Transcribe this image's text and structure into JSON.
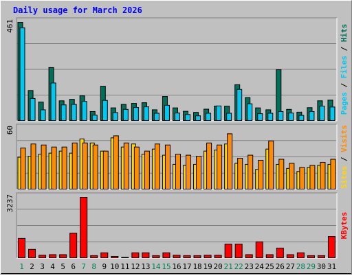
{
  "chart_data": {
    "type": "bar",
    "title": "Daily usage for March 2026",
    "categories": [
      "1",
      "2",
      "3",
      "4",
      "5",
      "6",
      "7",
      "8",
      "9",
      "10",
      "11",
      "12",
      "13",
      "14",
      "15",
      "16",
      "17",
      "18",
      "19",
      "20",
      "21",
      "22",
      "23",
      "24",
      "25",
      "26",
      "27",
      "28",
      "29",
      "30",
      "31"
    ],
    "weekend_days": [
      "1",
      "7",
      "8",
      "14",
      "15",
      "21",
      "22",
      "28",
      "29"
    ],
    "panels": [
      {
        "id": "hits-files",
        "max_label": "461",
        "ylim": [
          0,
          461
        ],
        "legend": [
          "Pages",
          "Files",
          "Hits"
        ],
        "series": [
          {
            "name": "Hits",
            "color": "#006f5a",
            "values": [
              461,
              143,
              89,
              250,
              95,
              102,
              118,
              45,
              163,
              62,
              78,
              83,
              86,
              53,
              115,
              62,
              46,
              41,
              56,
              70,
              70,
              170,
              110,
              62,
              53,
              240,
              55,
              42,
              63,
              95,
              98
            ]
          },
          {
            "name": "Files",
            "color": "#00c8f0",
            "values": [
              435,
              106,
              53,
              178,
              76,
              78,
              92,
              28,
              97,
              40,
              55,
              64,
              67,
              37,
              74,
              38,
              31,
              25,
              37,
              71,
              37,
              148,
              81,
              35,
              37,
              45,
              38,
              27,
              45,
              70,
              66
            ]
          },
          {
            "name": "Pages",
            "color": "#00c8f0",
            "values": [
              null,
              null,
              null,
              null,
              null,
              null,
              null,
              null,
              null,
              null,
              null,
              null,
              null,
              null,
              null,
              null,
              null,
              null,
              null,
              null,
              null,
              null,
              null,
              null,
              null,
              null,
              null,
              null,
              null,
              null,
              null
            ]
          }
        ]
      },
      {
        "id": "visits-sites",
        "max_label": "60",
        "ylim": [
          0,
          60
        ],
        "legend": [
          "Sites",
          "Visits"
        ],
        "series": [
          {
            "name": "Visits",
            "color": "#ff8c00",
            "values": [
              41,
              45,
              44,
              42,
              42,
              46,
              46,
              44,
              38,
              53,
              46,
              42,
              38,
              45,
              44,
              35,
              34,
              33,
              46,
              44,
              55,
              31,
              34,
              29,
              48,
              30,
              26,
              22,
              24,
              27,
              30
            ]
          },
          {
            "name": "Sites",
            "color": "#ffd700",
            "values": [
              32,
              33,
              35,
              36,
              38,
              36,
              50,
              46,
              38,
              51,
              42,
              45,
              35,
              40,
              34,
              25,
              24,
              25,
              38,
              39,
              45,
              26,
              25,
              20,
              40,
              25,
              21,
              18,
              22,
              24,
              25
            ]
          }
        ]
      },
      {
        "id": "kbytes",
        "max_label": "3237",
        "ylim": [
          0,
          3237
        ],
        "legend": [
          "KBytes"
        ],
        "series": [
          {
            "name": "KBytes",
            "color": "#ff0000",
            "values": [
              1060,
              480,
              170,
              200,
              200,
              1340,
              3237,
              150,
              300,
              110,
              60,
              300,
              300,
              150,
              300,
              170,
              150,
              150,
              170,
              170,
              760,
              760,
              200,
              880,
              200,
              550,
              200,
              300,
              150,
              150,
              1160
            ]
          }
        ]
      }
    ]
  }
}
